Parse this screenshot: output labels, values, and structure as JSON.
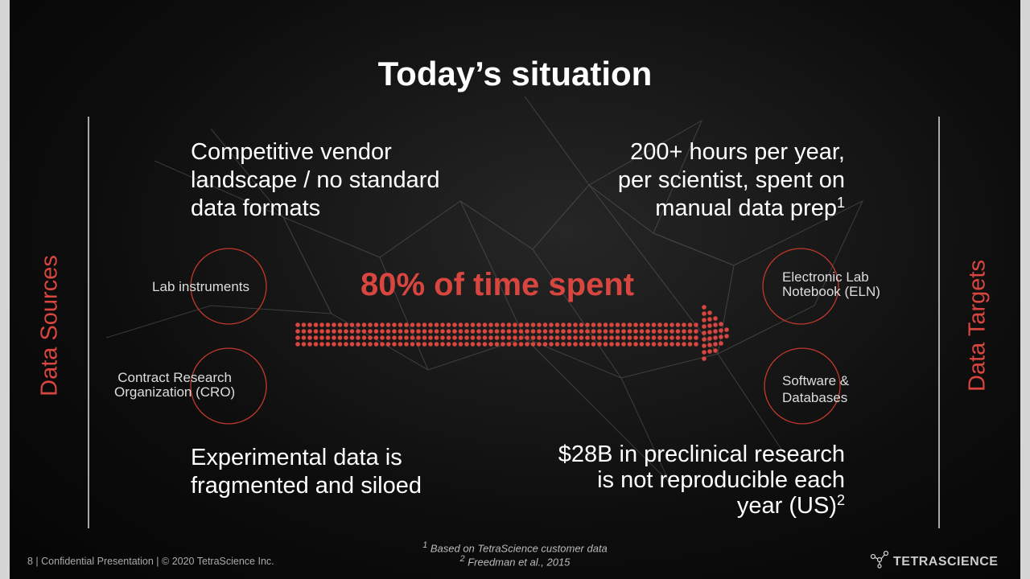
{
  "title": "Today’s situation",
  "side_labels": {
    "left": "Data Sources",
    "right": "Data Targets"
  },
  "callouts": {
    "top_left": {
      "lines": [
        "Competitive vendor",
        "landscape / no standard",
        "data formats"
      ]
    },
    "top_right": {
      "lines": [
        "200+ hours per year,",
        "per scientist, spent on",
        "manual data prep"
      ],
      "sup": "1"
    },
    "bottom_left": {
      "lines": [
        "Experimental data is",
        "fragmented and siloed"
      ]
    },
    "bottom_right": {
      "lines": [
        "$28B in preclinical research",
        "is not reproducible each",
        "year (US)"
      ],
      "sup": "2"
    }
  },
  "center_label": "80% of time spent",
  "sources": [
    [
      "Lab instruments"
    ],
    [
      "Contract Research",
      "Organization (CRO)"
    ]
  ],
  "targets": [
    [
      "Electronic Lab",
      "Notebook (ELN)"
    ],
    [
      "Software &",
      "Databases"
    ]
  ],
  "footnotes": [
    {
      "mark": "1",
      "text": "Based on TetraScience customer data"
    },
    {
      "mark": "2",
      "text": "Freedman et al., 2015"
    }
  ],
  "footer": "8 | Confidential Presentation | © 2020 TetraScience Inc.",
  "logo": "TETRASCIENCE"
}
